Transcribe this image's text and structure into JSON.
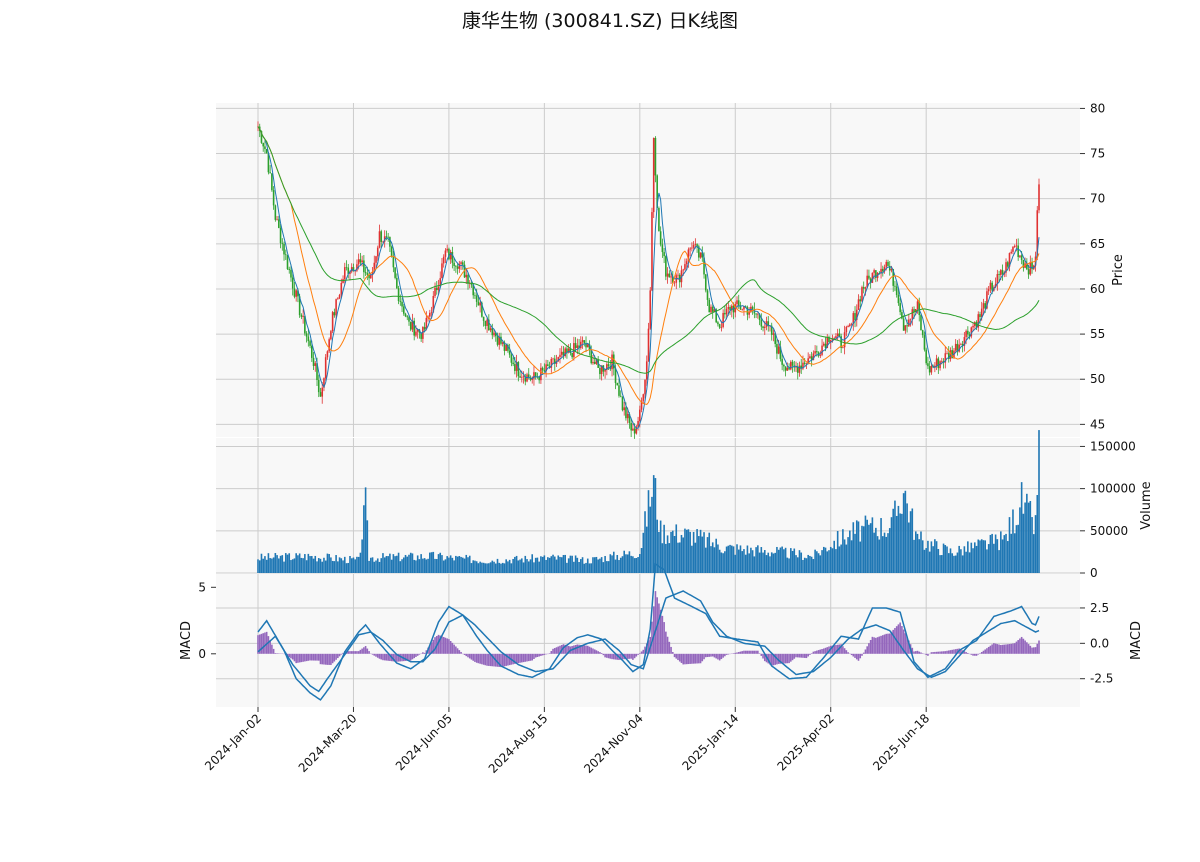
{
  "title": "康华生物 (300841.SZ) 日K线图",
  "colors": {
    "up": "#e03131",
    "down": "#2ca02c",
    "volume": "#1f77b4",
    "ma_short": "#1f77b4",
    "ma_mid": "#ff7f0e",
    "ma_long": "#2ca02c",
    "macd_line": "#1f77b4",
    "histogram": "#9467bd",
    "panel_bg": "#f8f8f8",
    "grid": "#cccccc"
  },
  "chart_data": {
    "type": "candlestick",
    "grid": true,
    "x_tick_labels": [
      "2024-Jan-02",
      "2024-Mar-20",
      "2024-Jun-05",
      "2024-Aug-15",
      "2024-Nov-04",
      "2025-Jan-14",
      "2025-Apr-02",
      "2025-Jun-18"
    ],
    "price_panel": {
      "ylabel": "Price",
      "y_ticks": [
        45,
        50,
        55,
        60,
        65,
        70,
        75,
        80
      ],
      "ylim": [
        43.6,
        80.6
      ],
      "close_anchors": [
        [
          0,
          78
        ],
        [
          5,
          75
        ],
        [
          10,
          68
        ],
        [
          18,
          62
        ],
        [
          25,
          57
        ],
        [
          32,
          52
        ],
        [
          36,
          48
        ],
        [
          42,
          56
        ],
        [
          50,
          62
        ],
        [
          58,
          63
        ],
        [
          65,
          61
        ],
        [
          70,
          66
        ],
        [
          75,
          65
        ],
        [
          80,
          60
        ],
        [
          87,
          56
        ],
        [
          95,
          55
        ],
        [
          100,
          58
        ],
        [
          108,
          64
        ],
        [
          115,
          63
        ],
        [
          122,
          61
        ],
        [
          130,
          57
        ],
        [
          140,
          54
        ],
        [
          150,
          51
        ],
        [
          158,
          50
        ],
        [
          166,
          51
        ],
        [
          172,
          52
        ],
        [
          180,
          53
        ],
        [
          188,
          54
        ],
        [
          196,
          51
        ],
        [
          204,
          52
        ],
        [
          210,
          47
        ],
        [
          216,
          44
        ],
        [
          220,
          46
        ],
        [
          224,
          52
        ],
        [
          226,
          60
        ],
        [
          228,
          77
        ],
        [
          231,
          66
        ],
        [
          235,
          62
        ],
        [
          242,
          61
        ],
        [
          250,
          65
        ],
        [
          256,
          63
        ],
        [
          260,
          58
        ],
        [
          266,
          56
        ],
        [
          272,
          58
        ],
        [
          280,
          58
        ],
        [
          288,
          57
        ],
        [
          296,
          55
        ],
        [
          302,
          52
        ],
        [
          308,
          51
        ],
        [
          315,
          52
        ],
        [
          322,
          53
        ],
        [
          330,
          55
        ],
        [
          336,
          54
        ],
        [
          342,
          56
        ],
        [
          348,
          60
        ],
        [
          356,
          62
        ],
        [
          362,
          63
        ],
        [
          368,
          60
        ],
        [
          372,
          56
        ],
        [
          380,
          58
        ],
        [
          386,
          51
        ],
        [
          393,
          52
        ],
        [
          400,
          53
        ],
        [
          408,
          55
        ],
        [
          416,
          57
        ],
        [
          422,
          60
        ],
        [
          430,
          62
        ],
        [
          436,
          65
        ],
        [
          441,
          63
        ],
        [
          446,
          62
        ],
        [
          448,
          64
        ],
        [
          450,
          72
        ]
      ],
      "candles_from_anchors": true,
      "moving_averages": [
        {
          "window": 5,
          "color": "#1f77b4"
        },
        {
          "window": 20,
          "color": "#ff7f0e"
        },
        {
          "window": 60,
          "color": "#2ca02c"
        }
      ]
    },
    "volume_panel": {
      "ylabel": "Volume",
      "y_ticks": [
        0,
        50000,
        100000,
        150000
      ],
      "ylim": [
        0,
        160000
      ],
      "volume_anchors": [
        [
          0,
          18000
        ],
        [
          30,
          20000
        ],
        [
          58,
          15000
        ],
        [
          62,
          80000
        ],
        [
          64,
          18000
        ],
        [
          100,
          20000
        ],
        [
          130,
          15000
        ],
        [
          170,
          18000
        ],
        [
          190,
          15000
        ],
        [
          205,
          20000
        ],
        [
          220,
          25000
        ],
        [
          225,
          80000
        ],
        [
          228,
          110000
        ],
        [
          232,
          50000
        ],
        [
          250,
          45000
        ],
        [
          270,
          30000
        ],
        [
          300,
          25000
        ],
        [
          320,
          20000
        ],
        [
          330,
          35000
        ],
        [
          345,
          50000
        ],
        [
          355,
          55000
        ],
        [
          365,
          55000
        ],
        [
          372,
          100000
        ],
        [
          380,
          40000
        ],
        [
          400,
          25000
        ],
        [
          420,
          35000
        ],
        [
          430,
          40000
        ],
        [
          440,
          85000
        ],
        [
          448,
          55000
        ],
        [
          450,
          155000
        ]
      ]
    },
    "macd_panel": {
      "ylabel": "MACD",
      "y_ticks_left": [
        0,
        5
      ],
      "y_ticks_right": [
        -2.5,
        0.0,
        2.5
      ],
      "ylim_left": [
        -4,
        6
      ],
      "ylim_right": [
        -4.5,
        4.9
      ],
      "fast_line_anchors": [
        [
          0,
          -0.6
        ],
        [
          10,
          0.5
        ],
        [
          20,
          -1.5
        ],
        [
          30,
          -3.0
        ],
        [
          35,
          -3.4
        ],
        [
          40,
          -2.5
        ],
        [
          50,
          -0.8
        ],
        [
          58,
          0.6
        ],
        [
          65,
          0.8
        ],
        [
          72,
          0.2
        ],
        [
          80,
          -0.8
        ],
        [
          88,
          -1.3
        ],
        [
          95,
          -1.3
        ],
        [
          102,
          -0.4
        ],
        [
          110,
          1.5
        ],
        [
          118,
          2.0
        ],
        [
          125,
          1.3
        ],
        [
          132,
          0.4
        ],
        [
          140,
          -0.6
        ],
        [
          150,
          -1.5
        ],
        [
          160,
          -2.0
        ],
        [
          170,
          -1.8
        ],
        [
          180,
          -0.5
        ],
        [
          190,
          0.0
        ],
        [
          200,
          0.3
        ],
        [
          208,
          -0.5
        ],
        [
          215,
          -1.5
        ],
        [
          222,
          -1.8
        ],
        [
          228,
          0.5
        ],
        [
          235,
          3.2
        ],
        [
          245,
          3.7
        ],
        [
          255,
          3.0
        ],
        [
          262,
          1.5
        ],
        [
          270,
          0.5
        ],
        [
          280,
          0.0
        ],
        [
          292,
          -0.2
        ],
        [
          300,
          -1.2
        ],
        [
          310,
          -2.2
        ],
        [
          320,
          -2.0
        ],
        [
          330,
          -1.0
        ],
        [
          340,
          0.3
        ],
        [
          348,
          1.0
        ],
        [
          356,
          1.3
        ],
        [
          364,
          0.9
        ],
        [
          372,
          -0.5
        ],
        [
          380,
          -1.8
        ],
        [
          388,
          -2.4
        ],
        [
          396,
          -2.0
        ],
        [
          404,
          -0.9
        ],
        [
          412,
          0.2
        ],
        [
          420,
          0.8
        ],
        [
          428,
          1.4
        ],
        [
          436,
          1.6
        ],
        [
          442,
          1.2
        ],
        [
          448,
          0.8
        ],
        [
          450,
          0.9
        ]
      ],
      "slow_line_anchors": [
        [
          0,
          0.8
        ],
        [
          5,
          1.6
        ],
        [
          15,
          -0.5
        ],
        [
          22,
          -2.5
        ],
        [
          30,
          -3.5
        ],
        [
          36,
          -4.0
        ],
        [
          42,
          -3.0
        ],
        [
          50,
          -0.6
        ],
        [
          58,
          0.8
        ],
        [
          62,
          1.3
        ],
        [
          70,
          0.0
        ],
        [
          80,
          -1.4
        ],
        [
          88,
          -1.8
        ],
        [
          96,
          -1.1
        ],
        [
          104,
          1.5
        ],
        [
          110,
          2.6
        ],
        [
          118,
          2.0
        ],
        [
          126,
          0.5
        ],
        [
          132,
          -0.5
        ],
        [
          140,
          -1.6
        ],
        [
          150,
          -2.2
        ],
        [
          158,
          -2.4
        ],
        [
          168,
          -1.8
        ],
        [
          176,
          -0.3
        ],
        [
          184,
          0.4
        ],
        [
          190,
          0.6
        ],
        [
          198,
          0.3
        ],
        [
          204,
          -0.5
        ],
        [
          210,
          -1.2
        ],
        [
          216,
          -2.0
        ],
        [
          222,
          -1.5
        ],
        [
          226,
          1.0
        ],
        [
          229,
          5.6
        ],
        [
          234,
          5.2
        ],
        [
          240,
          3.2
        ],
        [
          250,
          2.6
        ],
        [
          258,
          2.1
        ],
        [
          266,
          0.5
        ],
        [
          276,
          0.3
        ],
        [
          288,
          0.1
        ],
        [
          296,
          -1.6
        ],
        [
          306,
          -2.5
        ],
        [
          316,
          -2.4
        ],
        [
          326,
          -1.0
        ],
        [
          336,
          0.5
        ],
        [
          346,
          0.3
        ],
        [
          354,
          2.5
        ],
        [
          362,
          2.5
        ],
        [
          370,
          2.2
        ],
        [
          378,
          -1.3
        ],
        [
          386,
          -2.4
        ],
        [
          396,
          -1.8
        ],
        [
          404,
          -0.5
        ],
        [
          414,
          0.2
        ],
        [
          424,
          1.9
        ],
        [
          434,
          2.3
        ],
        [
          440,
          2.6
        ],
        [
          446,
          1.4
        ],
        [
          448,
          1.3
        ],
        [
          450,
          1.9
        ]
      ]
    }
  }
}
